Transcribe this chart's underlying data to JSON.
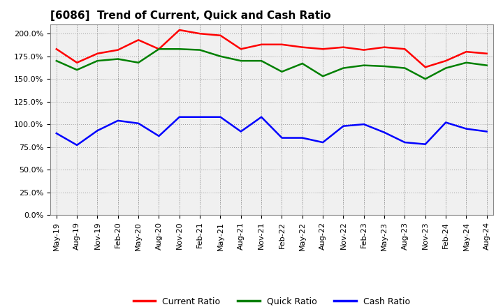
{
  "title": "[6086]  Trend of Current, Quick and Cash Ratio",
  "x_labels": [
    "May-19",
    "Aug-19",
    "Nov-19",
    "Feb-20",
    "May-20",
    "Aug-20",
    "Nov-20",
    "Feb-21",
    "May-21",
    "Aug-21",
    "Nov-21",
    "Feb-22",
    "May-22",
    "Aug-22",
    "Nov-22",
    "Feb-23",
    "May-23",
    "Aug-23",
    "Nov-23",
    "Feb-24",
    "May-24",
    "Aug-24"
  ],
  "current_ratio": [
    183,
    168,
    178,
    182,
    193,
    183,
    204,
    200,
    198,
    183,
    188,
    188,
    185,
    183,
    185,
    182,
    185,
    183,
    163,
    170,
    180,
    178
  ],
  "quick_ratio": [
    170,
    160,
    170,
    172,
    168,
    183,
    183,
    182,
    175,
    170,
    170,
    158,
    167,
    153,
    162,
    165,
    164,
    162,
    150,
    162,
    168,
    165
  ],
  "cash_ratio": [
    90,
    77,
    93,
    104,
    101,
    87,
    108,
    108,
    108,
    92,
    108,
    85,
    85,
    80,
    98,
    100,
    91,
    80,
    78,
    102,
    95,
    92
  ],
  "current_color": "#FF0000",
  "quick_color": "#008000",
  "cash_color": "#0000FF",
  "ylim": [
    0,
    210
  ],
  "yticks": [
    0,
    25,
    50,
    75,
    100,
    125,
    150,
    175,
    200
  ],
  "bg_color": "#FFFFFF",
  "plot_bg_color": "#F0F0F0",
  "grid_color": "#999999",
  "legend_labels": [
    "Current Ratio",
    "Quick Ratio",
    "Cash Ratio"
  ],
  "linewidth": 1.8,
  "title_fontsize": 11,
  "tick_fontsize": 8,
  "legend_fontsize": 9
}
